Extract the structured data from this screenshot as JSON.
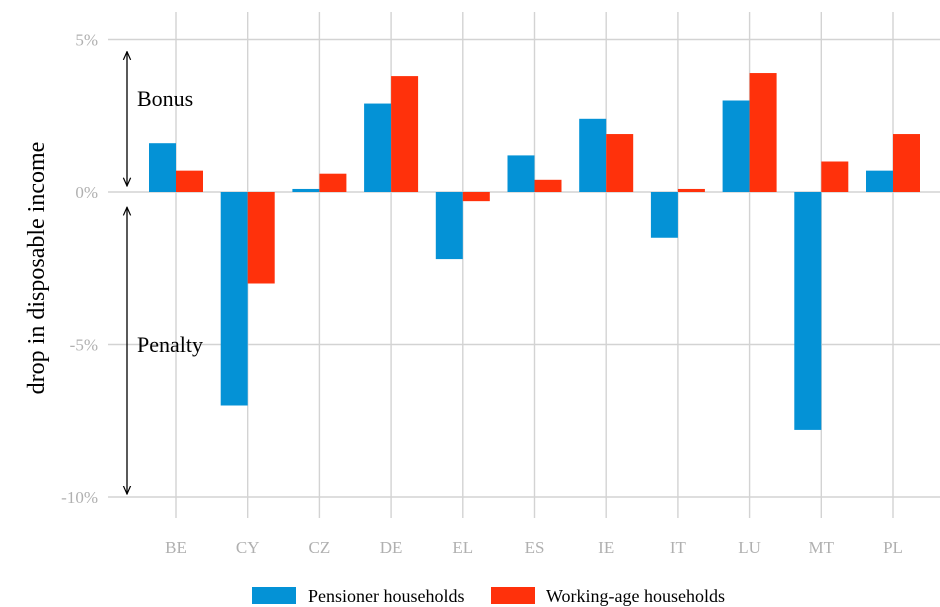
{
  "chart_data": {
    "type": "bar",
    "categories": [
      "BE",
      "CY",
      "CZ",
      "DE",
      "EL",
      "ES",
      "IE",
      "IT",
      "LU",
      "MT",
      "PL"
    ],
    "series": [
      {
        "name": "Pensioner households",
        "color": "#0492d6",
        "values": [
          1.6,
          -7.0,
          0.1,
          2.9,
          -2.2,
          1.2,
          2.4,
          -1.5,
          3.0,
          -7.8,
          0.7
        ]
      },
      {
        "name": "Working-age households",
        "color": "#ff310b",
        "values": [
          0.7,
          -3.0,
          0.6,
          3.8,
          -0.3,
          0.4,
          1.9,
          0.1,
          3.9,
          1.0,
          1.9
        ]
      }
    ],
    "ylabel": "drop in disposable income",
    "ylim": [
      -10.9,
      5.9
    ],
    "yticks": [
      5,
      0,
      -5,
      -10
    ],
    "ytick_labels": [
      "5%",
      "0%",
      "-5%",
      "-10%"
    ],
    "grid": true,
    "legend_position": "bottom",
    "annotations": [
      {
        "text": "Bonus",
        "arrow_from": 0.2,
        "arrow_to": 4.6
      },
      {
        "text": "Penalty",
        "arrow_from": -0.5,
        "arrow_to": -9.9
      }
    ]
  }
}
